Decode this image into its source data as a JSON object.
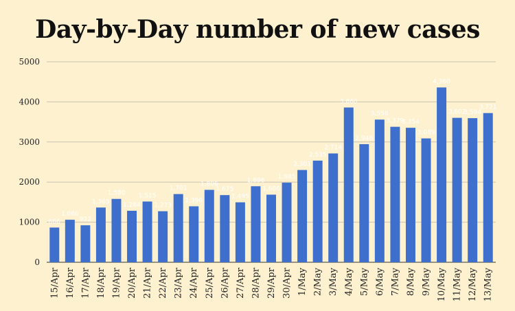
{
  "chart_data": {
    "type": "bar",
    "title": "Day-by-Day number of new cases",
    "xlabel": "",
    "ylabel": "",
    "ylim": [
      0,
      5000
    ],
    "yticks": [
      0,
      1000,
      2000,
      3000,
      4000,
      5000
    ],
    "grid": true,
    "legend": "none",
    "categories": [
      "15/Apr",
      "16/Apr",
      "17/Apr",
      "18/Apr",
      "19/Apr",
      "20/Apr",
      "21/Apr",
      "22/Apr",
      "23/Apr",
      "24/Apr",
      "25/Apr",
      "26/Apr",
      "27/Apr",
      "28/Apr",
      "29/Apr",
      "30/Apr",
      "1/May",
      "2/May",
      "3/May",
      "4/May",
      "5/May",
      "6/May",
      "7/May",
      "8/May",
      "9/May",
      "10/May",
      "11/May",
      "12/May",
      "13/May"
    ],
    "values": [
      866,
      1060,
      922,
      1365,
      1580,
      1284,
      1515,
      1273,
      1701,
      1396,
      1806,
      1675,
      1495,
      1896,
      1686,
      1985,
      2301,
      2535,
      2714,
      3860,
      2946,
      3558,
      3379,
      3354,
      3089,
      4360,
      3602,
      3594,
      3721
    ],
    "data_labels": [
      "866",
      "1,060",
      "922",
      "1,365",
      "1,580",
      "1,284",
      "1,515",
      "1,273",
      "1,701",
      "1,396",
      "1,806",
      "1,675",
      "1,495",
      "1,896",
      "1,686",
      "1,985",
      "2,301",
      "2,535",
      "2,714",
      "3,860",
      "2,946",
      "3,558",
      "3,379",
      "3,354",
      "3,089",
      "4,360",
      "3,602",
      "3,594",
      "3,721"
    ],
    "bar_color": "#3f6fcd",
    "grid_color": "#c9c2b0",
    "background_color": "#fdf1d0"
  }
}
